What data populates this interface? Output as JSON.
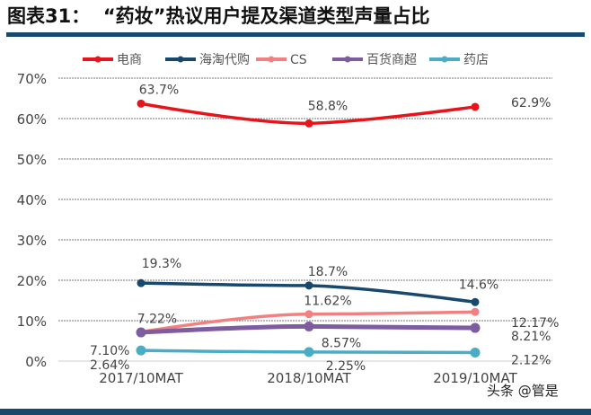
{
  "header": {
    "title": "图表31：  “药妆”热议用户提及渠道类型声量占比"
  },
  "watermark": "头条 @管是",
  "chart_data": {
    "type": "line",
    "title": "“药妆”热议用户提及渠道类型声量占比",
    "categories": [
      "2017/10MAT",
      "2018/10MAT",
      "2019/10MAT"
    ],
    "ylim": [
      0,
      70
    ],
    "yticks": [
      "0%",
      "10%",
      "20%",
      "30%",
      "40%",
      "50%",
      "60%",
      "70%"
    ],
    "grid": true,
    "legend_position": "top",
    "series": [
      {
        "name": "电商",
        "color": "#e8141c",
        "values": [
          63.7,
          58.8,
          62.9
        ],
        "labels": [
          "63.7%",
          "58.8%",
          "62.9%"
        ]
      },
      {
        "name": "海淘代购",
        "color": "#17496f",
        "values": [
          19.3,
          18.7,
          14.6
        ],
        "labels": [
          "19.3%",
          "18.7%",
          "14.6%"
        ]
      },
      {
        "name": "CS",
        "color": "#f28080",
        "values": [
          7.22,
          11.62,
          12.17
        ],
        "labels": [
          "7.22%",
          "11.62%",
          "12.17%"
        ]
      },
      {
        "name": "百货商超",
        "color": "#7d5ca0",
        "values": [
          7.1,
          8.57,
          8.21
        ],
        "labels": [
          "7.10%",
          "8.57%",
          "8.21%"
        ]
      },
      {
        "name": "药店",
        "color": "#4bacc6",
        "values": [
          2.64,
          2.25,
          2.12
        ],
        "labels": [
          "2.64%",
          "2.25%",
          "2.12%"
        ]
      }
    ]
  }
}
